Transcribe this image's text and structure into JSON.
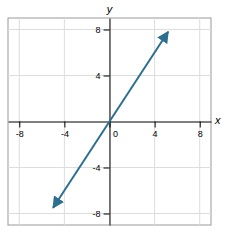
{
  "chart_data": {
    "type": "line",
    "x": [
      -5.0,
      5.2
    ],
    "values": [
      -7.5,
      7.8
    ],
    "color": "#2e6e8e",
    "xlabel": "x",
    "ylabel": "y",
    "xlim": [
      -9,
      9
    ],
    "ylim": [
      -9,
      9
    ],
    "xticks": [
      -8,
      -4,
      0,
      4,
      8
    ],
    "yticks": [
      -8,
      -4,
      4,
      8
    ],
    "grid": true
  }
}
